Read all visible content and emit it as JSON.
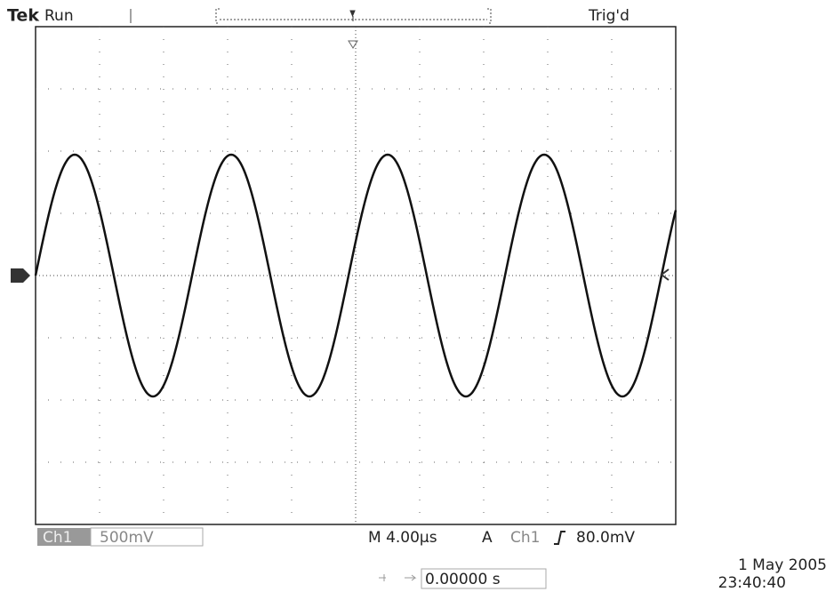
{
  "header": {
    "brand": "Tek",
    "status": "Run",
    "trigger_status": "Trig'd"
  },
  "footer": {
    "channel": "Ch1",
    "scale": "500mV",
    "timebase": "M 4.00µs",
    "trigger_mode": "A",
    "trigger_source": "Ch1",
    "trigger_level": "80.0mV",
    "position": "0.00000 s",
    "date": "1 May 2005",
    "time": "23:40:40"
  }
}
